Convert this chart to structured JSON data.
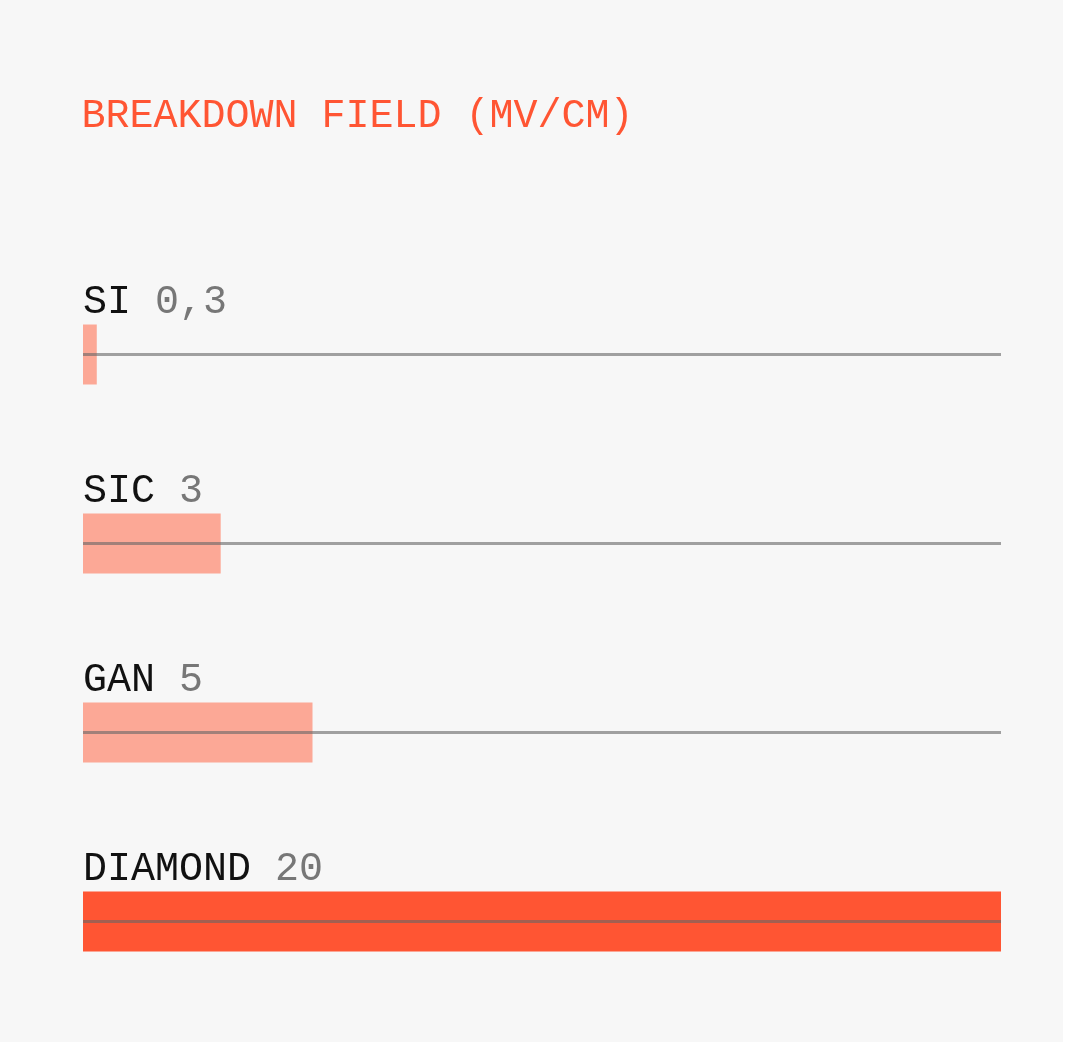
{
  "chart_data": {
    "type": "bar",
    "orientation": "horizontal",
    "title": "BREAKDOWN FIELD (MV/CM)",
    "categories": [
      "SI",
      "SIC",
      "GAN",
      "DIAMOND"
    ],
    "values": [
      0.3,
      3,
      5,
      20
    ],
    "value_labels": [
      "0,3",
      "3",
      "5",
      "20"
    ],
    "colors": [
      "#fca896",
      "#fca896",
      "#fca896",
      "#ff5533"
    ]
  }
}
